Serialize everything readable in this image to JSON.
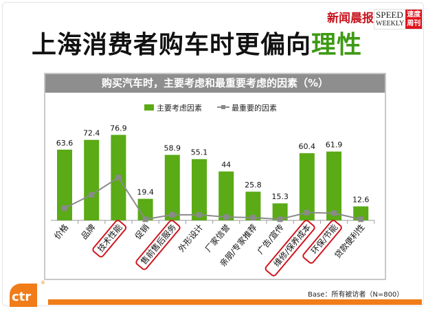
{
  "slide": {
    "title_main": "上海消费者购车时更偏向",
    "title_highlight": "理性",
    "logo_xinwen": "新闻晨报",
    "logo_speed": "SPEED",
    "logo_weekly": "WEEKLY",
    "logo_speed_cn_1": "速度",
    "logo_speed_cn_2": "周刊",
    "base_note": "Base：所有被访者（N=800）",
    "brand_logo": "ctr",
    "colors": {
      "bar": "#5aab16",
      "line": "#8a8a8a",
      "highlight_box": "#d0141e",
      "accent": "#f07c1a",
      "title_highlight": "#3e9a14"
    }
  },
  "chart_data": {
    "type": "bar+line",
    "title": "购买汽车时，主要考虑和最重要考虑的因素（%）",
    "categories": [
      "价格",
      "品牌",
      "技术性能",
      "促销",
      "售前售后服务",
      "外形设计",
      "厂家信誉",
      "亲朋/专家推荐",
      "广告/宣传",
      "维修/保养成本",
      "环保/节能",
      "贷款便利性"
    ],
    "highlighted_categories": [
      "技术性能",
      "售前售后服务",
      "维修/保养成本",
      "环保/节能"
    ],
    "series": [
      {
        "name": "主要考虑因素",
        "type": "bar",
        "values": [
          63.6,
          72.4,
          76.9,
          19.4,
          58.9,
          55.1,
          44,
          25.8,
          15.3,
          60.4,
          61.9,
          12.6
        ],
        "labels": [
          "63.6",
          "72.4",
          "76.9",
          "19.4",
          "58.9",
          "55.1",
          "44",
          "25.8",
          "15.3",
          "60.4",
          "61.9",
          "12.6"
        ]
      },
      {
        "name": "最重要的因素",
        "type": "line",
        "values": [
          11,
          23,
          38.5,
          1,
          5,
          5,
          3,
          2.5,
          1,
          7,
          6.5,
          1
        ]
      }
    ],
    "ylim": [
      0,
      85
    ],
    "legend": "top",
    "grid": false
  }
}
